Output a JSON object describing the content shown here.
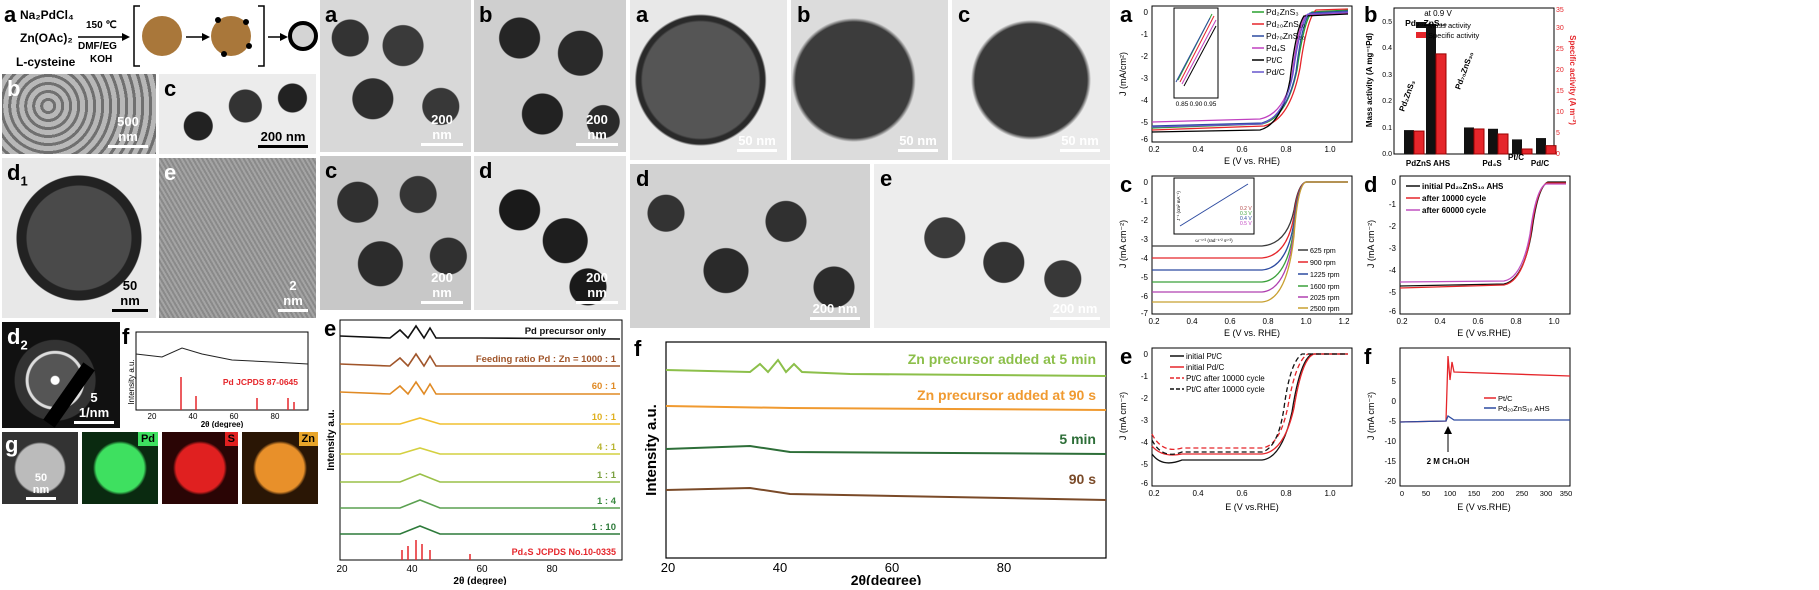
{
  "colors": {
    "accent_red": "#e5262b",
    "green": "#4dae49",
    "orange": "#f08a24",
    "navy": "#2c4aa0",
    "brown": "#b98a3a"
  },
  "panel1": {
    "a": {
      "letter": "a",
      "reagents": [
        "Na₂PdCl₄",
        "Zn(OAc)₂",
        "L-cysteine"
      ],
      "conditions_top": "150 ℃",
      "conditions_bottom": [
        "DMF/EG",
        "KOH"
      ]
    },
    "b": {
      "letter": "b",
      "scale": "500 nm"
    },
    "c": {
      "letter": "c",
      "scale": "200 nm"
    },
    "d1": {
      "letter": "d",
      "sub": "1",
      "scale": "50 nm"
    },
    "e": {
      "letter": "e",
      "scale": "2 nm"
    },
    "d2": {
      "letter": "d",
      "sub": "2",
      "scale": "5 1/nm"
    },
    "f": {
      "letter": "f",
      "ylabel": "Intensity a.u.",
      "xlabel": "2θ (degree)",
      "ticks": [
        "20",
        "40",
        "60",
        "80"
      ],
      "ref_label": "Pd JCPDS 87-0645"
    },
    "g": {
      "letter": "g",
      "scale": "50 nm",
      "maps": [
        "Pd",
        "S",
        "Zn"
      ]
    }
  },
  "panel2": {
    "a": {
      "letter": "a",
      "scale": "200 nm"
    },
    "b": {
      "letter": "b",
      "scale": "200 nm"
    },
    "c": {
      "letter": "c",
      "scale": "200 nm"
    },
    "d": {
      "letter": "d",
      "scale": "200 nm"
    },
    "e": {
      "letter": "e",
      "ylabel": "Intensity a.u.",
      "xlabel": "2θ (degree)",
      "ticks": [
        "20",
        "40",
        "60",
        "80"
      ],
      "labels": [
        "Pd precursor only",
        "Feeding ratio Pd : Zn = 1000 : 1",
        "60 : 1",
        "10 : 1",
        "4 : 1",
        "1 : 1",
        "1 : 4",
        "1 : 10"
      ],
      "ref_label": "Pd₄S JCPDS No.10-0335"
    }
  },
  "panel3": {
    "a": {
      "letter": "a",
      "scale": "50 nm"
    },
    "b": {
      "letter": "b",
      "scale": "50 nm"
    },
    "c": {
      "letter": "c",
      "scale": "50 nm"
    },
    "d": {
      "letter": "d",
      "scale": "200 nm"
    },
    "e": {
      "letter": "e",
      "scale": "200 nm"
    },
    "f": {
      "letter": "f",
      "ylabel": "Intensity a.u.",
      "xlabel": "2θ(degree)",
      "ticks": [
        "20",
        "40",
        "60",
        "80"
      ],
      "labels": [
        "Zn precursor added at 5 min",
        "Zn precursor added at 90 s",
        "5 min",
        "90 s"
      ]
    }
  },
  "panel4": {
    "a": {
      "letter": "a",
      "ylabel": "J (mA/cm²)",
      "xlabel": "E (V vs. RHE)",
      "xticks": [
        "0.2",
        "0.4",
        "0.6",
        "0.8",
        "1.0"
      ],
      "yticks": [
        "0",
        "-1",
        "-2",
        "-3",
        "-4",
        "-5",
        "-6"
      ],
      "inset_xticks": [
        "0.85",
        "0.90",
        "0.95"
      ],
      "legend": [
        "Pd₂ZnS₃",
        "Pd₂₀ZnS₁₀",
        "Pd₇₀ZnS₃₀",
        "Pd₄S",
        "Pt/C",
        "Pd/C"
      ]
    },
    "b": {
      "letter": "b",
      "ylabel_left": "Mass activity (A mg⁻¹Pd)",
      "ylabel_right": "Specific activity (A m⁻²)",
      "note": "at 0.9 V",
      "legend": [
        "Mass activity",
        "Specific activity"
      ],
      "top_labels": [
        "Pd₂ZnS₃",
        "Pd₂₀ZnS₁₀",
        "Pd₇₀ZnS₃₀"
      ],
      "xlabels": [
        "PdZnS AHS",
        "Pd₄S",
        "Pt/C",
        "Pd/C"
      ],
      "yticks_left": [
        "0.0",
        "0.1",
        "0.2",
        "0.3",
        "0.4",
        "0.5"
      ],
      "yticks_right": [
        "0",
        "5",
        "10",
        "15",
        "20",
        "25",
        "30",
        "35"
      ]
    },
    "c": {
      "letter": "c",
      "ylabel": "J (mA cm⁻²)",
      "xlabel": "E (V vs. RHE)",
      "xticks": [
        "0.2",
        "0.4",
        "0.6",
        "0.8",
        "1.0",
        "1.2"
      ],
      "yticks": [
        "0",
        "-1",
        "-2",
        "-3",
        "-4",
        "-5",
        "-6",
        "-7"
      ],
      "legend": [
        "625 rpm",
        "900 rpm",
        "1225 rpm",
        "1600 rpm",
        "2025 rpm",
        "2500 rpm"
      ],
      "inset_legend": [
        "0.2 V",
        "0.3 V",
        "0.4 V",
        "0.5 V"
      ],
      "inset_xlabel": "ω⁻¹ᐟ² (rad⁻¹ᐟ² s¹ᐟ²)",
      "inset_ylabel": "J⁻¹ (cm² mA⁻¹)"
    },
    "d": {
      "letter": "d",
      "ylabel": "J (mA cm⁻²)",
      "xlabel": "E (V vs.RHE)",
      "xticks": [
        "0.2",
        "0.4",
        "0.6",
        "0.8",
        "1.0"
      ],
      "yticks": [
        "0",
        "-1",
        "-2",
        "-3",
        "-4",
        "-5",
        "-6"
      ],
      "legend": [
        "initial Pd₂₀ZnS₁₀ AHS",
        "after 10000 cycle",
        "after 60000 cycle"
      ]
    },
    "e": {
      "letter": "e",
      "ylabel": "J (mA cm⁻²)",
      "xlabel": "E (V vs.RHE)",
      "xticks": [
        "0.2",
        "0.4",
        "0.6",
        "0.8",
        "1.0"
      ],
      "yticks": [
        "0",
        "-1",
        "-2",
        "-3",
        "-4",
        "-5",
        "-6"
      ],
      "legend": [
        "initial Pt/C",
        "initial Pd/C",
        "Pt/C after 10000 cycle",
        "Pt/C after 10000 cycle"
      ]
    },
    "f": {
      "letter": "f",
      "ylabel": "J (mA cm⁻²)",
      "xlabel": "E (V vs.RHE)",
      "xticks": [
        "0",
        "50",
        "100",
        "150",
        "200",
        "250",
        "300",
        "350"
      ],
      "yticks": [
        "5",
        "0",
        "-5",
        "-10",
        "-15",
        "-20"
      ],
      "legend": [
        "Pt/C",
        "Pd₂₀ZnS₁₀ AHS"
      ],
      "annotation": "2 M CH₃OH"
    }
  },
  "chart_data": [
    {
      "type": "line",
      "xlabel": "E (V vs. RHE)",
      "ylabel": "J (mA/cm²)",
      "xlim": [
        0.2,
        1.1
      ],
      "ylim": [
        -6.2,
        0.2
      ],
      "series": [
        {
          "name": "Pd₂ZnS₃",
          "half_wave": 0.89,
          "limit": -5.5
        },
        {
          "name": "Pd₂₀ZnS₁₀",
          "half_wave": 0.9,
          "limit": -5.6
        },
        {
          "name": "Pd₇₀ZnS₃₀",
          "half_wave": 0.89,
          "limit": -5.4
        },
        {
          "name": "Pd₄S",
          "half_wave": 0.87,
          "limit": -5.2
        },
        {
          "name": "Pt/C",
          "half_wave": 0.86,
          "limit": -5.8
        },
        {
          "name": "Pd/C",
          "half_wave": 0.87,
          "limit": -5.5
        }
      ]
    },
    {
      "type": "bar",
      "categories": [
        "Pd₂ZnS₃",
        "Pd₂₀ZnS₁₀",
        "Pd₇₀ZnS₃₀",
        "Pd₄S",
        "Pt/C",
        "Pd/C"
      ],
      "series": [
        {
          "name": "Mass activity",
          "values": [
            0.09,
            0.49,
            0.1,
            0.095,
            0.055,
            0.06
          ]
        },
        {
          "name": "Specific activity",
          "values": [
            5.5,
            24.0,
            6.0,
            4.8,
            1.2,
            2.0
          ]
        }
      ],
      "ylim_left": [
        0,
        0.55
      ],
      "ylim_right": [
        0,
        35
      ]
    },
    {
      "type": "line",
      "xlabel": "E (V vs. RHE)",
      "ylabel": "J (mA cm⁻²)",
      "xlim": [
        0.2,
        1.2
      ],
      "ylim": [
        -7.5,
        0.5
      ],
      "series": [
        {
          "name": "625 rpm",
          "limit": -3.7
        },
        {
          "name": "900 rpm",
          "limit": -4.2
        },
        {
          "name": "1225 rpm",
          "limit": -4.7
        },
        {
          "name": "1600 rpm",
          "limit": -5.3
        },
        {
          "name": "2025 rpm",
          "limit": -5.9
        },
        {
          "name": "2500 rpm",
          "limit": -6.5
        }
      ]
    },
    {
      "type": "line",
      "xlabel": "E (V vs.RHE)",
      "ylabel": "J (mA cm⁻²)",
      "xlim": [
        0.2,
        1.1
      ],
      "ylim": [
        -6.2,
        0.2
      ],
      "series": [
        {
          "name": "initial Pd₂₀ZnS₁₀ AHS",
          "half_wave": 0.88,
          "limit": -5.4
        },
        {
          "name": "after 10000 cycle",
          "half_wave": 0.875,
          "limit": -5.3
        },
        {
          "name": "after 60000 cycle",
          "half_wave": 0.87,
          "limit": -5.1
        }
      ]
    },
    {
      "type": "line",
      "xlabel": "E (V vs.RHE)",
      "ylabel": "J (mA cm⁻²)",
      "xlim": [
        0.2,
        1.1
      ],
      "ylim": [
        -6.2,
        0.2
      ],
      "series": [
        {
          "name": "initial Pt/C",
          "half_wave": 0.87,
          "limit": -5.8
        },
        {
          "name": "initial Pd/C",
          "half_wave": 0.9,
          "limit": -5.2
        },
        {
          "name": "Pt/C after 10000 cycle",
          "half_wave": 0.86,
          "limit": -5.3
        },
        {
          "name": "Pt/C after 10000 cycle",
          "half_wave": 0.89,
          "limit": -5.0
        }
      ]
    },
    {
      "type": "line",
      "xlabel": "E (V vs.RHE)",
      "ylabel": "J (mA cm⁻²)",
      "xlim": [
        0,
        350
      ],
      "ylim": [
        -20,
        15
      ],
      "series": [
        {
          "name": "Pt/C",
          "baseline": -5.5,
          "after_injection": 9.0
        },
        {
          "name": "Pd₂₀ZnS₁₀ AHS",
          "baseline": -5.2,
          "after_injection": -4.5
        }
      ],
      "annotation": {
        "text": "2 M CH₃OH",
        "x": 105
      }
    }
  ]
}
